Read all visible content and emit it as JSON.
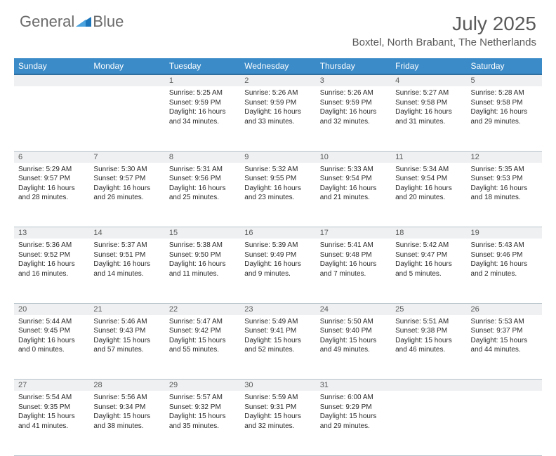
{
  "brand": {
    "general": "General",
    "blue": "Blue"
  },
  "title": "July 2025",
  "location": "Boxtel, North Brabant, The Netherlands",
  "colors": {
    "header_bg": "#3b8bc8",
    "header_border": "#2f6fa0",
    "daynum_bg": "#eef0f1",
    "text_gray": "#5a5a5a",
    "cell_border": "#b8c4cc",
    "logo_blue": "#1b75bb"
  },
  "weekdays": [
    "Sunday",
    "Monday",
    "Tuesday",
    "Wednesday",
    "Thursday",
    "Friday",
    "Saturday"
  ],
  "weeks": [
    [
      null,
      null,
      {
        "n": "1",
        "sr": "Sunrise: 5:25 AM",
        "ss": "Sunset: 9:59 PM",
        "d1": "Daylight: 16 hours",
        "d2": "and 34 minutes."
      },
      {
        "n": "2",
        "sr": "Sunrise: 5:26 AM",
        "ss": "Sunset: 9:59 PM",
        "d1": "Daylight: 16 hours",
        "d2": "and 33 minutes."
      },
      {
        "n": "3",
        "sr": "Sunrise: 5:26 AM",
        "ss": "Sunset: 9:59 PM",
        "d1": "Daylight: 16 hours",
        "d2": "and 32 minutes."
      },
      {
        "n": "4",
        "sr": "Sunrise: 5:27 AM",
        "ss": "Sunset: 9:58 PM",
        "d1": "Daylight: 16 hours",
        "d2": "and 31 minutes."
      },
      {
        "n": "5",
        "sr": "Sunrise: 5:28 AM",
        "ss": "Sunset: 9:58 PM",
        "d1": "Daylight: 16 hours",
        "d2": "and 29 minutes."
      }
    ],
    [
      {
        "n": "6",
        "sr": "Sunrise: 5:29 AM",
        "ss": "Sunset: 9:57 PM",
        "d1": "Daylight: 16 hours",
        "d2": "and 28 minutes."
      },
      {
        "n": "7",
        "sr": "Sunrise: 5:30 AM",
        "ss": "Sunset: 9:57 PM",
        "d1": "Daylight: 16 hours",
        "d2": "and 26 minutes."
      },
      {
        "n": "8",
        "sr": "Sunrise: 5:31 AM",
        "ss": "Sunset: 9:56 PM",
        "d1": "Daylight: 16 hours",
        "d2": "and 25 minutes."
      },
      {
        "n": "9",
        "sr": "Sunrise: 5:32 AM",
        "ss": "Sunset: 9:55 PM",
        "d1": "Daylight: 16 hours",
        "d2": "and 23 minutes."
      },
      {
        "n": "10",
        "sr": "Sunrise: 5:33 AM",
        "ss": "Sunset: 9:54 PM",
        "d1": "Daylight: 16 hours",
        "d2": "and 21 minutes."
      },
      {
        "n": "11",
        "sr": "Sunrise: 5:34 AM",
        "ss": "Sunset: 9:54 PM",
        "d1": "Daylight: 16 hours",
        "d2": "and 20 minutes."
      },
      {
        "n": "12",
        "sr": "Sunrise: 5:35 AM",
        "ss": "Sunset: 9:53 PM",
        "d1": "Daylight: 16 hours",
        "d2": "and 18 minutes."
      }
    ],
    [
      {
        "n": "13",
        "sr": "Sunrise: 5:36 AM",
        "ss": "Sunset: 9:52 PM",
        "d1": "Daylight: 16 hours",
        "d2": "and 16 minutes."
      },
      {
        "n": "14",
        "sr": "Sunrise: 5:37 AM",
        "ss": "Sunset: 9:51 PM",
        "d1": "Daylight: 16 hours",
        "d2": "and 14 minutes."
      },
      {
        "n": "15",
        "sr": "Sunrise: 5:38 AM",
        "ss": "Sunset: 9:50 PM",
        "d1": "Daylight: 16 hours",
        "d2": "and 11 minutes."
      },
      {
        "n": "16",
        "sr": "Sunrise: 5:39 AM",
        "ss": "Sunset: 9:49 PM",
        "d1": "Daylight: 16 hours",
        "d2": "and 9 minutes."
      },
      {
        "n": "17",
        "sr": "Sunrise: 5:41 AM",
        "ss": "Sunset: 9:48 PM",
        "d1": "Daylight: 16 hours",
        "d2": "and 7 minutes."
      },
      {
        "n": "18",
        "sr": "Sunrise: 5:42 AM",
        "ss": "Sunset: 9:47 PM",
        "d1": "Daylight: 16 hours",
        "d2": "and 5 minutes."
      },
      {
        "n": "19",
        "sr": "Sunrise: 5:43 AM",
        "ss": "Sunset: 9:46 PM",
        "d1": "Daylight: 16 hours",
        "d2": "and 2 minutes."
      }
    ],
    [
      {
        "n": "20",
        "sr": "Sunrise: 5:44 AM",
        "ss": "Sunset: 9:45 PM",
        "d1": "Daylight: 16 hours",
        "d2": "and 0 minutes."
      },
      {
        "n": "21",
        "sr": "Sunrise: 5:46 AM",
        "ss": "Sunset: 9:43 PM",
        "d1": "Daylight: 15 hours",
        "d2": "and 57 minutes."
      },
      {
        "n": "22",
        "sr": "Sunrise: 5:47 AM",
        "ss": "Sunset: 9:42 PM",
        "d1": "Daylight: 15 hours",
        "d2": "and 55 minutes."
      },
      {
        "n": "23",
        "sr": "Sunrise: 5:49 AM",
        "ss": "Sunset: 9:41 PM",
        "d1": "Daylight: 15 hours",
        "d2": "and 52 minutes."
      },
      {
        "n": "24",
        "sr": "Sunrise: 5:50 AM",
        "ss": "Sunset: 9:40 PM",
        "d1": "Daylight: 15 hours",
        "d2": "and 49 minutes."
      },
      {
        "n": "25",
        "sr": "Sunrise: 5:51 AM",
        "ss": "Sunset: 9:38 PM",
        "d1": "Daylight: 15 hours",
        "d2": "and 46 minutes."
      },
      {
        "n": "26",
        "sr": "Sunrise: 5:53 AM",
        "ss": "Sunset: 9:37 PM",
        "d1": "Daylight: 15 hours",
        "d2": "and 44 minutes."
      }
    ],
    [
      {
        "n": "27",
        "sr": "Sunrise: 5:54 AM",
        "ss": "Sunset: 9:35 PM",
        "d1": "Daylight: 15 hours",
        "d2": "and 41 minutes."
      },
      {
        "n": "28",
        "sr": "Sunrise: 5:56 AM",
        "ss": "Sunset: 9:34 PM",
        "d1": "Daylight: 15 hours",
        "d2": "and 38 minutes."
      },
      {
        "n": "29",
        "sr": "Sunrise: 5:57 AM",
        "ss": "Sunset: 9:32 PM",
        "d1": "Daylight: 15 hours",
        "d2": "and 35 minutes."
      },
      {
        "n": "30",
        "sr": "Sunrise: 5:59 AM",
        "ss": "Sunset: 9:31 PM",
        "d1": "Daylight: 15 hours",
        "d2": "and 32 minutes."
      },
      {
        "n": "31",
        "sr": "Sunrise: 6:00 AM",
        "ss": "Sunset: 9:29 PM",
        "d1": "Daylight: 15 hours",
        "d2": "and 29 minutes."
      },
      null,
      null
    ]
  ]
}
